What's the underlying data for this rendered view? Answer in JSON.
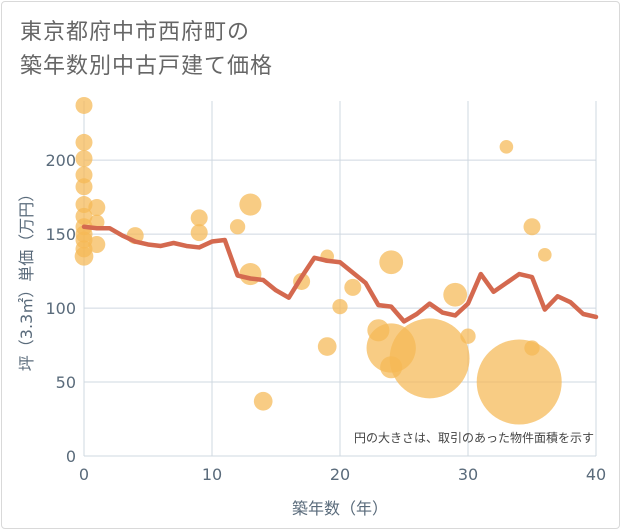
{
  "title": {
    "line1": "東京都府中市西府町の",
    "line2": "築年数別中古戸建て価格"
  },
  "note": "円の大きさは、取引のあった物件面積を示す",
  "colors": {
    "bubble": "#f5b955",
    "line": "#d4694f",
    "grid": "#cfd8e0",
    "plot_bg": "#ffffff"
  },
  "chart_data": {
    "type": "scatter",
    "xlabel": "築年数（年）",
    "ylabel": "坪（3.3㎡）単価（万円）",
    "xlim": [
      0,
      40
    ],
    "ylim": [
      0,
      240
    ],
    "xticks": [
      0,
      10,
      20,
      30,
      40
    ],
    "yticks": [
      0,
      50,
      100,
      150,
      200
    ],
    "bubbles": [
      {
        "x": 0,
        "y": 237,
        "s": 1
      },
      {
        "x": 0,
        "y": 212,
        "s": 1
      },
      {
        "x": 0,
        "y": 201,
        "s": 1
      },
      {
        "x": 0,
        "y": 190,
        "s": 1
      },
      {
        "x": 0,
        "y": 182,
        "s": 1
      },
      {
        "x": 0,
        "y": 170,
        "s": 1
      },
      {
        "x": 0,
        "y": 162,
        "s": 1
      },
      {
        "x": 0,
        "y": 155,
        "s": 1
      },
      {
        "x": 0,
        "y": 150,
        "s": 1
      },
      {
        "x": 0,
        "y": 146,
        "s": 1
      },
      {
        "x": 0,
        "y": 140,
        "s": 1
      },
      {
        "x": 0,
        "y": 135,
        "s": 1.1
      },
      {
        "x": 1,
        "y": 168,
        "s": 1
      },
      {
        "x": 1,
        "y": 158,
        "s": 0.9
      },
      {
        "x": 1,
        "y": 143,
        "s": 1
      },
      {
        "x": 4,
        "y": 149,
        "s": 1
      },
      {
        "x": 9,
        "y": 161,
        "s": 1
      },
      {
        "x": 9,
        "y": 151,
        "s": 1
      },
      {
        "x": 12,
        "y": 155,
        "s": 0.9
      },
      {
        "x": 13,
        "y": 170,
        "s": 1.3
      },
      {
        "x": 13,
        "y": 123,
        "s": 1.3
      },
      {
        "x": 14,
        "y": 37,
        "s": 1.1
      },
      {
        "x": 17,
        "y": 118,
        "s": 1
      },
      {
        "x": 19,
        "y": 135,
        "s": 0.8
      },
      {
        "x": 19,
        "y": 74,
        "s": 1.1
      },
      {
        "x": 20,
        "y": 101,
        "s": 0.9
      },
      {
        "x": 21,
        "y": 114,
        "s": 1
      },
      {
        "x": 23,
        "y": 85,
        "s": 1.3
      },
      {
        "x": 24,
        "y": 131,
        "s": 1.4
      },
      {
        "x": 24,
        "y": 73,
        "s": 2.9
      },
      {
        "x": 24,
        "y": 60,
        "s": 1.3
      },
      {
        "x": 27,
        "y": 66,
        "s": 4.7
      },
      {
        "x": 29,
        "y": 109,
        "s": 1.4
      },
      {
        "x": 30,
        "y": 81,
        "s": 0.9
      },
      {
        "x": 33,
        "y": 209,
        "s": 0.8
      },
      {
        "x": 34,
        "y": 50,
        "s": 5.0
      },
      {
        "x": 35,
        "y": 155,
        "s": 1
      },
      {
        "x": 35,
        "y": 73,
        "s": 0.9
      },
      {
        "x": 36,
        "y": 136,
        "s": 0.8
      }
    ],
    "trend": {
      "x": [
        0,
        1,
        2,
        3,
        4,
        5,
        6,
        7,
        8,
        9,
        10,
        11,
        12,
        13,
        14,
        15,
        16,
        17,
        18,
        19,
        20,
        21,
        22,
        23,
        24,
        25,
        26,
        27,
        28,
        29,
        30,
        31,
        32,
        33,
        34,
        35,
        36,
        37,
        38,
        39,
        40
      ],
      "y": [
        155,
        154,
        154,
        149,
        145,
        143,
        142,
        144,
        142,
        141,
        145,
        146,
        122,
        120,
        119,
        112,
        107,
        121,
        134,
        132,
        131,
        124,
        117,
        102,
        101,
        91,
        96,
        103,
        97,
        95,
        103,
        123,
        111,
        117,
        123,
        121,
        99,
        108,
        104,
        96,
        94
      ]
    }
  }
}
